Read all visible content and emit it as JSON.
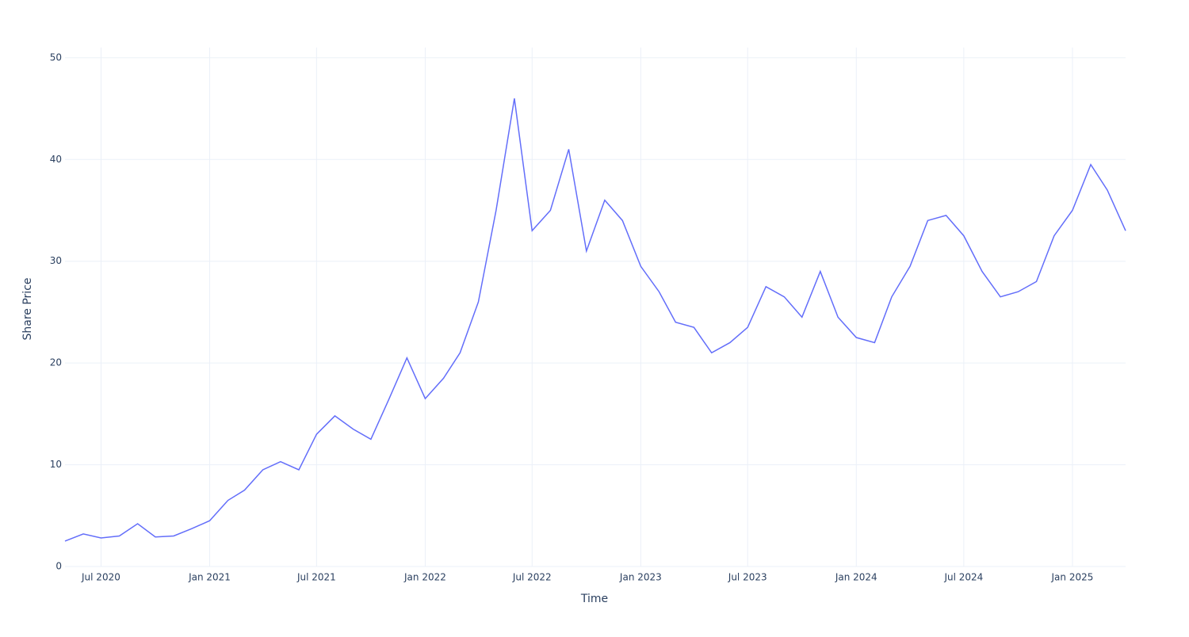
{
  "chart_data": {
    "type": "line",
    "x_label": "Time",
    "y_label": "Share Price",
    "x": [
      "2020-05",
      "2020-06",
      "2020-07",
      "2020-08",
      "2020-09",
      "2020-10",
      "2020-11",
      "2020-12",
      "2021-01",
      "2021-02",
      "2021-03",
      "2021-04",
      "2021-05",
      "2021-06",
      "2021-07",
      "2021-08",
      "2021-09",
      "2021-10",
      "2021-11",
      "2021-12",
      "2022-01",
      "2022-02",
      "2022-03",
      "2022-04",
      "2022-05",
      "2022-06",
      "2022-07",
      "2022-08",
      "2022-09",
      "2022-10",
      "2022-11",
      "2022-12",
      "2023-01",
      "2023-02",
      "2023-03",
      "2023-04",
      "2023-05",
      "2023-06",
      "2023-07",
      "2023-08",
      "2023-09",
      "2023-10",
      "2023-11",
      "2023-12",
      "2024-01",
      "2024-02",
      "2024-03",
      "2024-04",
      "2024-05",
      "2024-06",
      "2024-07",
      "2024-08",
      "2024-09",
      "2024-10",
      "2024-11",
      "2024-12",
      "2025-01",
      "2025-02",
      "2025-03",
      "2025-04"
    ],
    "series": [
      {
        "name": "Share Price",
        "color": "#636efa",
        "values": [
          2.5,
          3.2,
          2.8,
          3.0,
          4.2,
          2.9,
          3.0,
          3.7,
          4.5,
          6.5,
          7.5,
          9.5,
          10.3,
          9.5,
          13.0,
          14.8,
          13.5,
          12.5,
          16.5,
          20.5,
          16.5,
          18.5,
          21.0,
          26.0,
          35.0,
          46.0,
          33.0,
          35.0,
          41.0,
          31.0,
          36.0,
          34.0,
          29.5,
          27.0,
          24.0,
          23.5,
          21.0,
          22.0,
          23.5,
          27.5,
          26.5,
          24.5,
          29.0,
          24.5,
          22.5,
          22.0,
          26.5,
          29.5,
          34.0,
          34.5,
          32.5,
          29.0,
          26.5,
          27.0,
          28.0,
          32.5,
          35.0,
          39.5,
          37.0,
          33.0
        ]
      }
    ],
    "xlim": [
      "2020-05",
      "2025-04"
    ],
    "xticks": [
      {
        "value": "2020-07",
        "label": "Jul 2020"
      },
      {
        "value": "2021-01",
        "label": "Jan 2021"
      },
      {
        "value": "2021-07",
        "label": "Jul 2021"
      },
      {
        "value": "2022-01",
        "label": "Jan 2022"
      },
      {
        "value": "2022-07",
        "label": "Jul 2022"
      },
      {
        "value": "2023-01",
        "label": "Jan 2023"
      },
      {
        "value": "2023-07",
        "label": "Jul 2023"
      },
      {
        "value": "2024-01",
        "label": "Jan 2024"
      },
      {
        "value": "2024-07",
        "label": "Jul 2024"
      },
      {
        "value": "2025-01",
        "label": "Jan 2025"
      }
    ],
    "ylim": [
      0,
      51
    ],
    "yticks": [
      0,
      10,
      20,
      30,
      40,
      50
    ],
    "grid": true
  }
}
